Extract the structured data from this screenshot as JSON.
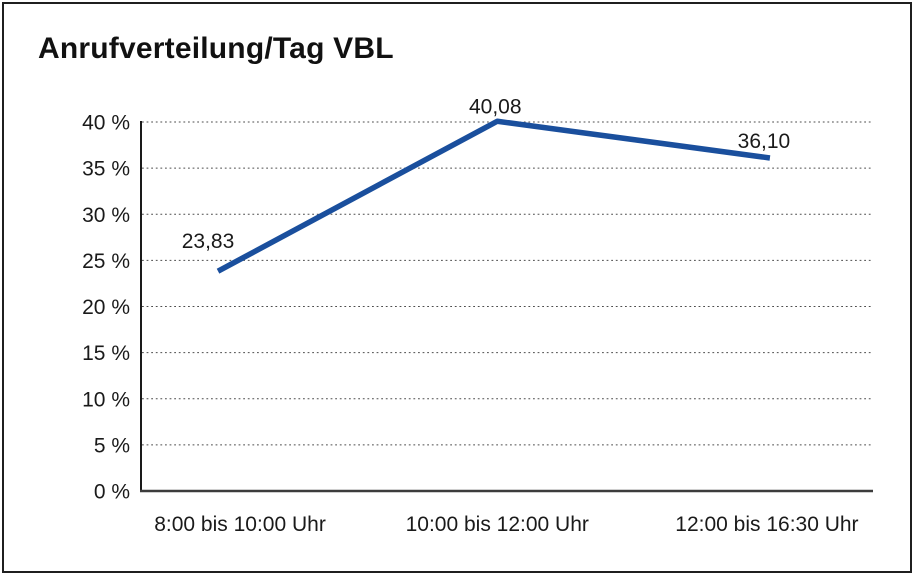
{
  "chart_data": {
    "type": "line",
    "title": "Anrufverteilung/Tag VBL",
    "categories": [
      "8:00 bis 10:00 Uhr",
      "10:00 bis 12:00 Uhr",
      "12:00 bis 16:30 Uhr"
    ],
    "values": [
      23.83,
      40.08,
      36.1
    ],
    "data_labels": [
      "23,83",
      "40,08",
      "36,10"
    ],
    "xlabel": "",
    "ylabel": "",
    "ylim": [
      0,
      40
    ],
    "ytick_step": 5,
    "ytick_labels": [
      "0 %",
      "5 %",
      "10 %",
      "15 %",
      "20 %",
      "25 %",
      "30 %",
      "35 %",
      "40 %"
    ],
    "grid": "horizontal-dotted",
    "legend": "none"
  },
  "colors": {
    "line": "#1A4F9D",
    "axis": "#1a1a1a",
    "baseline": "#3c3c3c",
    "grid": "#4d4d4d",
    "text": "#1a1a1a",
    "border": "#1f1f1f",
    "background": "#ffffff"
  }
}
